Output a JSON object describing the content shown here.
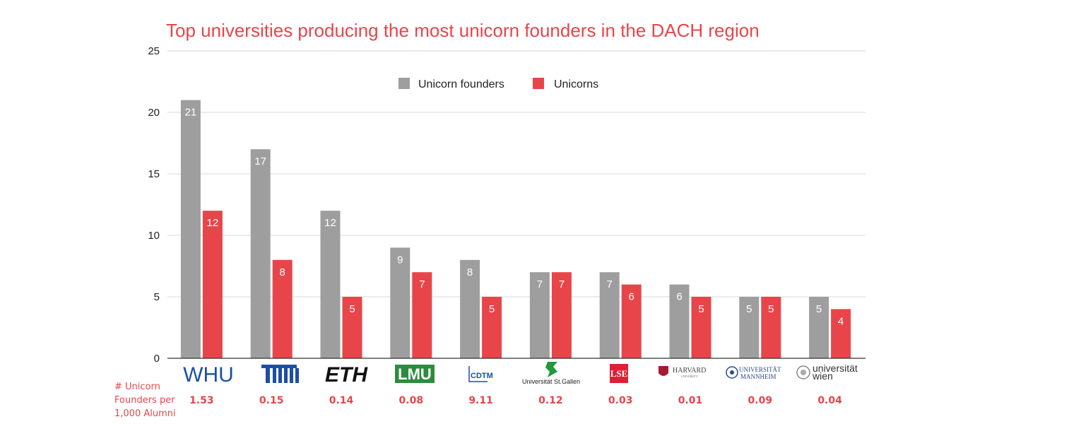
{
  "chart_data": {
    "type": "bar",
    "title": "Top universities producing the most unicorn founders in the DACH region",
    "categories": [
      "WHU",
      "TUM",
      "ETH",
      "LMU",
      "CDTM",
      "Universität St.Gallen",
      "LSE",
      "HARVARD UNIVERSITY",
      "UNIVERSITÄT MANNHEIM",
      "universität wien"
    ],
    "series": [
      {
        "name": "Unicorn founders",
        "color": "#9e9e9e",
        "values": [
          21,
          17,
          12,
          9,
          8,
          7,
          7,
          6,
          5,
          5
        ]
      },
      {
        "name": "Unicorns",
        "color": "#e8454a",
        "values": [
          12,
          8,
          5,
          7,
          5,
          7,
          6,
          5,
          5,
          4
        ]
      }
    ],
    "ylim": [
      0,
      25
    ],
    "yticks": [
      "0",
      "5",
      "10",
      "15",
      "20",
      "25"
    ],
    "grid": true,
    "legend_position": "top-center",
    "data_labels": true,
    "per_alumni": {
      "label_lines": [
        "# Unicorn",
        "Founders per",
        "1,000 Alumni"
      ],
      "values": [
        "1.53",
        "0.15",
        "0.14",
        "0.08",
        "9.11",
        "0.12",
        "0.03",
        "0.01",
        "0.09",
        "0.04"
      ]
    }
  },
  "logos": {
    "whu": "WHU",
    "eth": "ETH",
    "lmu": "LMU",
    "cdtm": "CDTM",
    "stgallen": "Universität St.Gallen",
    "lse": "LSE",
    "harvard_main": "HARVARD",
    "harvard_sub": "UNIVERSITY",
    "mannheim_1": "UNIVERSITÄT",
    "mannheim_2": "MANNHEIM",
    "wien_1": "universität",
    "wien_2": "wien"
  },
  "colors": {
    "title": "#e8454a",
    "grid": "#d9d9d9",
    "axis": "#333333"
  }
}
